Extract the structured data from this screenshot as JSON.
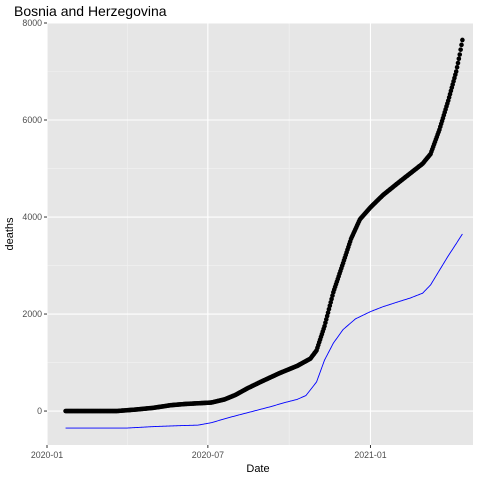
{
  "chart_data": {
    "type": "scatter",
    "title": "Bosnia and Herzegovina",
    "xlabel": "Date",
    "ylabel": "deaths",
    "x_axis": {
      "type": "date",
      "range": [
        "2020-01-01",
        "2021-04-27"
      ],
      "ticks": [
        {
          "value": "2020-01-01",
          "label": "2020-01"
        },
        {
          "value": "2020-07-01",
          "label": "2020-07"
        },
        {
          "value": "2021-01-01",
          "label": "2021-01"
        }
      ]
    },
    "y_axis": {
      "range": [
        -700,
        8000
      ],
      "ticks": [
        0,
        2000,
        4000,
        6000,
        8000
      ]
    },
    "grid": true,
    "legend": "none",
    "colors": {
      "panel": "#e6e6e6",
      "grid_major": "#ffffff",
      "points": "#000000",
      "line": "#0000ff",
      "tick_label": "#4d4d4d"
    },
    "series": [
      {
        "type": "points",
        "start_date": "2020-01-22",
        "end_date": "2021-04-15",
        "key_points": [
          [
            "2020-01-22",
            0
          ],
          [
            "2020-03-20",
            0
          ],
          [
            "2020-04-10",
            30
          ],
          [
            "2020-04-30",
            65
          ],
          [
            "2020-05-20",
            120
          ],
          [
            "2020-06-05",
            145
          ],
          [
            "2020-06-20",
            160
          ],
          [
            "2020-07-05",
            175
          ],
          [
            "2020-07-20",
            240
          ],
          [
            "2020-08-01",
            330
          ],
          [
            "2020-08-15",
            470
          ],
          [
            "2020-09-01",
            620
          ],
          [
            "2020-09-20",
            780
          ],
          [
            "2020-10-10",
            930
          ],
          [
            "2020-10-25",
            1080
          ],
          [
            "2020-11-01",
            1250
          ],
          [
            "2020-11-10",
            1750
          ],
          [
            "2020-11-20",
            2450
          ],
          [
            "2020-12-01",
            3050
          ],
          [
            "2020-12-10",
            3550
          ],
          [
            "2020-12-20",
            3950
          ],
          [
            "2021-01-01",
            4200
          ],
          [
            "2021-01-15",
            4450
          ],
          [
            "2021-02-01",
            4700
          ],
          [
            "2021-02-15",
            4900
          ],
          [
            "2021-03-01",
            5100
          ],
          [
            "2021-03-10",
            5300
          ],
          [
            "2021-03-20",
            5800
          ],
          [
            "2021-03-30",
            6400
          ],
          [
            "2021-04-08",
            7000
          ],
          [
            "2021-04-12",
            7350
          ],
          [
            "2021-04-15",
            7650
          ]
        ]
      },
      {
        "type": "line",
        "key_points": [
          [
            "2020-01-22",
            -350
          ],
          [
            "2020-04-01",
            -350
          ],
          [
            "2020-05-01",
            -320
          ],
          [
            "2020-06-01",
            -300
          ],
          [
            "2020-06-20",
            -290
          ],
          [
            "2020-07-05",
            -240
          ],
          [
            "2020-07-20",
            -160
          ],
          [
            "2020-08-01",
            -100
          ],
          [
            "2020-08-20",
            -10
          ],
          [
            "2020-09-10",
            90
          ],
          [
            "2020-09-25",
            170
          ],
          [
            "2020-10-10",
            240
          ],
          [
            "2020-10-20",
            320
          ],
          [
            "2020-11-01",
            600
          ],
          [
            "2020-11-10",
            1050
          ],
          [
            "2020-11-20",
            1400
          ],
          [
            "2020-12-01",
            1680
          ],
          [
            "2020-12-15",
            1900
          ],
          [
            "2021-01-01",
            2050
          ],
          [
            "2021-01-15",
            2150
          ],
          [
            "2021-02-01",
            2250
          ],
          [
            "2021-02-15",
            2330
          ],
          [
            "2021-03-01",
            2430
          ],
          [
            "2021-03-10",
            2600
          ],
          [
            "2021-03-20",
            2900
          ],
          [
            "2021-03-30",
            3200
          ],
          [
            "2021-04-08",
            3450
          ],
          [
            "2021-04-15",
            3650
          ]
        ]
      }
    ]
  }
}
